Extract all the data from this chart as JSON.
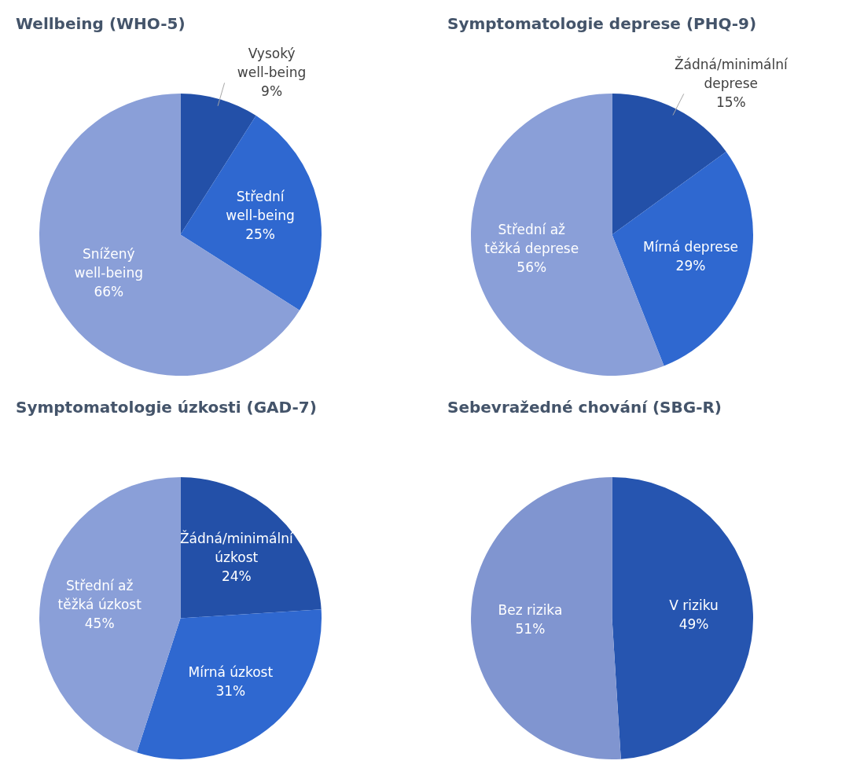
{
  "chart_data": [
    {
      "type": "pie",
      "title": "Wellbeing (WHO-5)",
      "categories": [
        "Vysoký well-being",
        "Střední well-being",
        "Snížený well-being"
      ],
      "values": [
        9,
        25,
        66
      ],
      "value_labels": [
        "9%",
        "25%",
        "66%"
      ],
      "colors": [
        "#2350a8",
        "#2f68d0",
        "#8a9fd8"
      ]
    },
    {
      "type": "pie",
      "title": "Symptomatologie deprese (PHQ-9)",
      "categories": [
        "Žádná/minimální deprese",
        "Mírná deprese",
        "Střední až těžká deprese"
      ],
      "values": [
        15,
        29,
        56
      ],
      "value_labels": [
        "15%",
        "29%",
        "56%"
      ],
      "colors": [
        "#2350a8",
        "#2f68d0",
        "#8a9fd8"
      ]
    },
    {
      "type": "pie",
      "title": "Symptomatologie úzkosti (GAD-7)",
      "categories": [
        "Žádná/minimální úzkost",
        "Mírná úzkost",
        "Střední až těžká úzkost"
      ],
      "values": [
        24,
        31,
        45
      ],
      "value_labels": [
        "24%",
        "31%",
        "45%"
      ],
      "colors": [
        "#2350a8",
        "#2f68d0",
        "#8a9fd8"
      ]
    },
    {
      "type": "pie",
      "title": "Sebevražedné chování (SBG-R)",
      "categories": [
        "V riziku",
        "Bez rizika"
      ],
      "values": [
        49,
        51
      ],
      "value_labels": [
        "49%",
        "51%"
      ],
      "colors": [
        "#2655b0",
        "#8095d0"
      ]
    }
  ]
}
